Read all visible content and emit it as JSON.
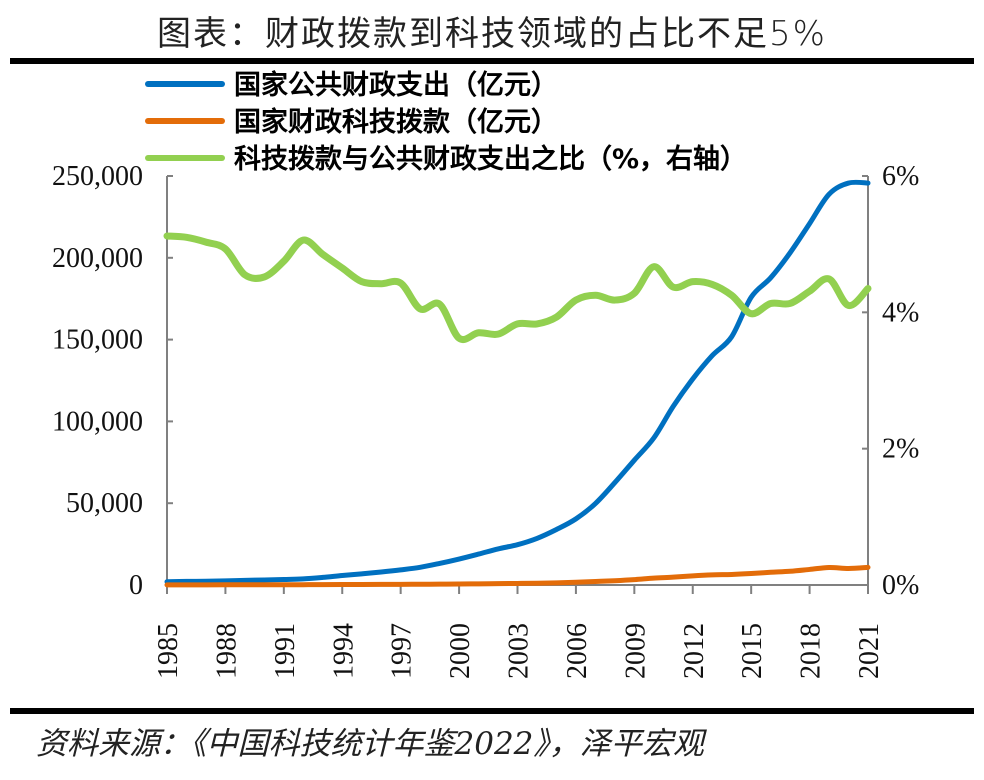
{
  "title": "图表：财政拨款到科技领域的占比不足5%",
  "source": "资料来源：《中国科技统计年鉴2022》，泽平宏观",
  "chart_data": {
    "type": "line",
    "title": "图表：财政拨款到科技领域的占比不足5%",
    "x": [
      1985,
      1986,
      1987,
      1988,
      1989,
      1990,
      1991,
      1992,
      1993,
      1994,
      1995,
      1996,
      1997,
      1998,
      1999,
      2000,
      2001,
      2002,
      2003,
      2004,
      2005,
      2006,
      2007,
      2008,
      2009,
      2010,
      2011,
      2012,
      2013,
      2014,
      2015,
      2016,
      2017,
      2018,
      2019,
      2020,
      2021
    ],
    "x_ticks": [
      "1985",
      "1988",
      "1991",
      "1994",
      "1997",
      "2000",
      "2003",
      "2006",
      "2009",
      "2012",
      "2015",
      "2018",
      "2021"
    ],
    "y_left": {
      "range": [
        0,
        250000
      ],
      "ticks": [
        "0",
        "50,000",
        "100,000",
        "150,000",
        "200,000",
        "250,000"
      ]
    },
    "y_right": {
      "range": [
        0,
        6
      ],
      "ticks": [
        "0%",
        "2%",
        "4%",
        "6%"
      ]
    },
    "grid": false,
    "legend_placement": "top-left",
    "series": [
      {
        "name": "国家公共财政支出（亿元）",
        "axis": "left",
        "color": "#0070C0",
        "values": [
          2004,
          2205,
          2262,
          2491,
          2824,
          3084,
          3387,
          3742,
          4642,
          5793,
          6824,
          7938,
          9234,
          10798,
          13188,
          15887,
          18903,
          22053,
          24650,
          28487,
          33930,
          40423,
          49781,
          62593,
          76300,
          89874,
          109248,
          125953,
          140212,
          151786,
          175878,
          187755,
          203085,
          220904,
          238858,
          245679,
          245673
        ]
      },
      {
        "name": "国家财政科技拨款（亿元）",
        "axis": "left",
        "color": "#E36C09",
        "values": [
          103,
          113,
          114,
          121,
          128,
          139,
          161,
          189,
          226,
          268,
          302,
          349,
          409,
          439,
          544,
          576,
          703,
          816,
          945,
          1095,
          1335,
          1689,
          2136,
          2611,
          3277,
          4197,
          4797,
          5600,
          6185,
          6455,
          7006,
          7761,
          8384,
          9518,
          10717,
          10095,
          10767
        ]
      },
      {
        "name": "科技拨款与公共财政支出之比（%，右轴）",
        "axis": "right",
        "color": "#92D050",
        "values": [
          5.12,
          5.1,
          5.03,
          4.93,
          4.55,
          4.52,
          4.75,
          5.06,
          4.85,
          4.65,
          4.45,
          4.42,
          4.43,
          4.05,
          4.12,
          3.62,
          3.7,
          3.68,
          3.83,
          3.83,
          3.93,
          4.18,
          4.25,
          4.18,
          4.28,
          4.67,
          4.37,
          4.45,
          4.41,
          4.25,
          3.98,
          4.13,
          4.13,
          4.31,
          4.49,
          4.1,
          4.35
        ]
      }
    ]
  }
}
